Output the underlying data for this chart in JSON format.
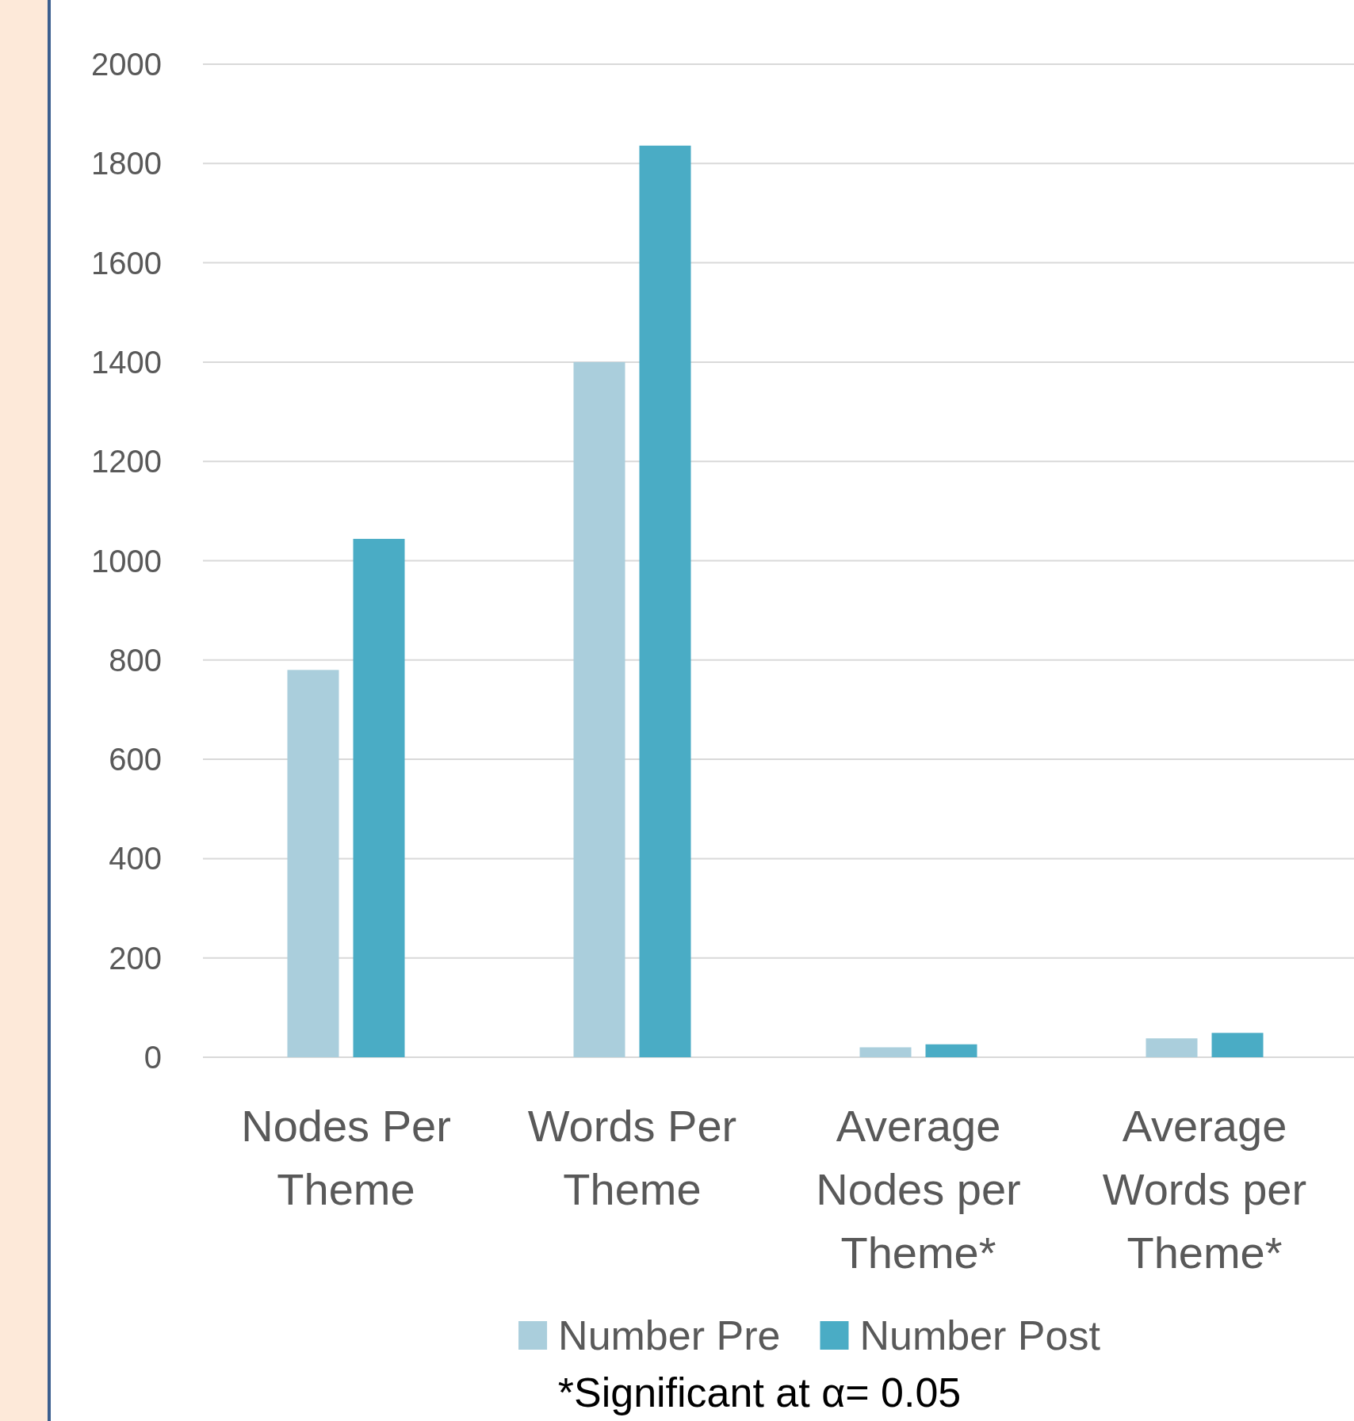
{
  "chart_data": {
    "type": "bar",
    "categories": [
      "Nodes Per Theme",
      "Words Per Theme",
      "Average Nodes per Theme*",
      "Average Words per Theme*"
    ],
    "series": [
      {
        "name": "Number Pre",
        "color": "#aacedc",
        "values": [
          780,
          1400,
          20,
          38
        ]
      },
      {
        "name": "Number Post",
        "color": "#4aacc5",
        "values": [
          1044,
          1836,
          26,
          49
        ]
      }
    ],
    "ylim": [
      0,
      2000
    ],
    "yticks": [
      0,
      200,
      400,
      600,
      800,
      1000,
      1200,
      1400,
      1600,
      1800,
      2000
    ],
    "grid": "y",
    "legend": "bottom",
    "annotations": [
      "*Significant at α= 0.05"
    ]
  }
}
